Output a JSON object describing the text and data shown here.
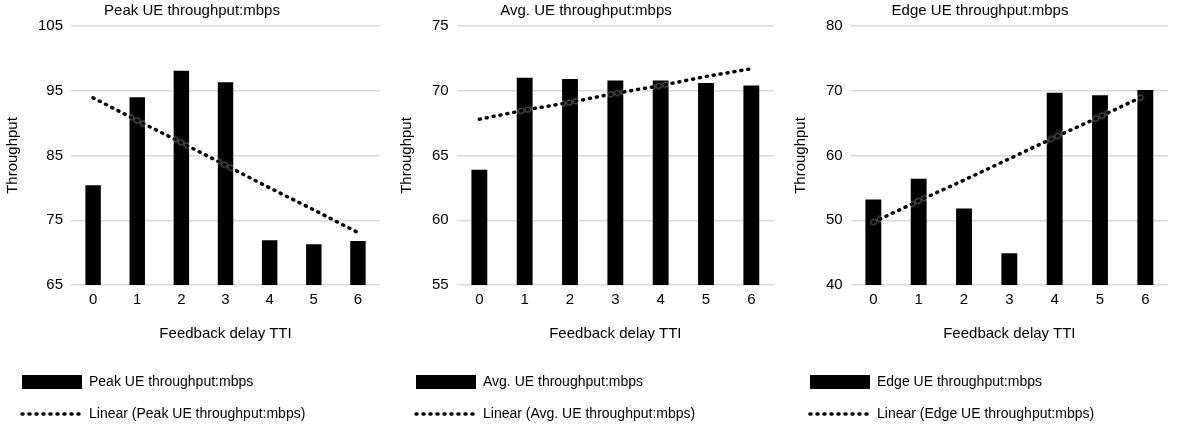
{
  "chart_data": [
    {
      "type": "bar",
      "title": "Peak UE throughput:mbps",
      "xlabel": "Feedback delay TTI",
      "ylabel": "Throughput",
      "categories": [
        "0",
        "1",
        "2",
        "3",
        "4",
        "5",
        "6"
      ],
      "series": [
        {
          "name": "Peak UE throughput:mbps",
          "color": "#000000",
          "values": [
            80.4,
            94.0,
            98.1,
            96.3,
            71.9,
            71.3,
            71.8
          ]
        },
        {
          "name": "Linear (Peak UE throughput:mbps)",
          "type": "line",
          "color": "#000000",
          "line_style": "dotted",
          "values": [
            93.9,
            90.4,
            87.0,
            83.5,
            80.0,
            76.6,
            73.1
          ]
        }
      ],
      "ylim": [
        65,
        105
      ],
      "yticks": [
        65,
        75,
        85,
        95,
        105
      ],
      "grid": "y",
      "legend": "bottom",
      "marker": "none"
    },
    {
      "type": "bar",
      "title": "Avg. UE throughput:mbps",
      "xlabel": "Feedback delay TTI",
      "ylabel": "Throughput",
      "categories": [
        "0",
        "1",
        "2",
        "3",
        "4",
        "5",
        "6"
      ],
      "series": [
        {
          "name": "Avg. UE throughput:mbps",
          "color": "#000000",
          "values": [
            63.9,
            71.0,
            70.9,
            70.8,
            70.8,
            70.6,
            70.4
          ]
        },
        {
          "name": "Linear (Avg. UE throughput:mbps)",
          "type": "line",
          "color": "#000000",
          "line_style": "dotted",
          "values": [
            67.8,
            68.5,
            69.1,
            69.8,
            70.4,
            71.1,
            71.7
          ]
        }
      ],
      "ylim": [
        55,
        75
      ],
      "yticks": [
        55,
        60,
        65,
        70,
        75
      ],
      "grid": "y",
      "legend": "bottom",
      "marker": "none"
    },
    {
      "type": "bar",
      "title": "Edge UE throughput:mbps",
      "xlabel": "Feedback delay TTI",
      "ylabel": "Throughput",
      "categories": [
        "0",
        "1",
        "2",
        "3",
        "4",
        "5",
        "6"
      ],
      "series": [
        {
          "name": "Edge UE throughput:mbps",
          "color": "#000000",
          "values": [
            53.2,
            56.4,
            51.8,
            44.9,
            69.7,
            69.3,
            70.1
          ]
        },
        {
          "name": "Linear (Edge UE throughput:mbps)",
          "type": "line",
          "color": "#000000",
          "line_style": "dotted",
          "values": [
            49.7,
            53.0,
            56.2,
            59.5,
            62.8,
            66.0,
            69.3
          ]
        }
      ],
      "ylim": [
        40,
        80
      ],
      "yticks": [
        40,
        50,
        60,
        70,
        80
      ],
      "grid": "y",
      "legend": "bottom",
      "marker": "none"
    }
  ]
}
